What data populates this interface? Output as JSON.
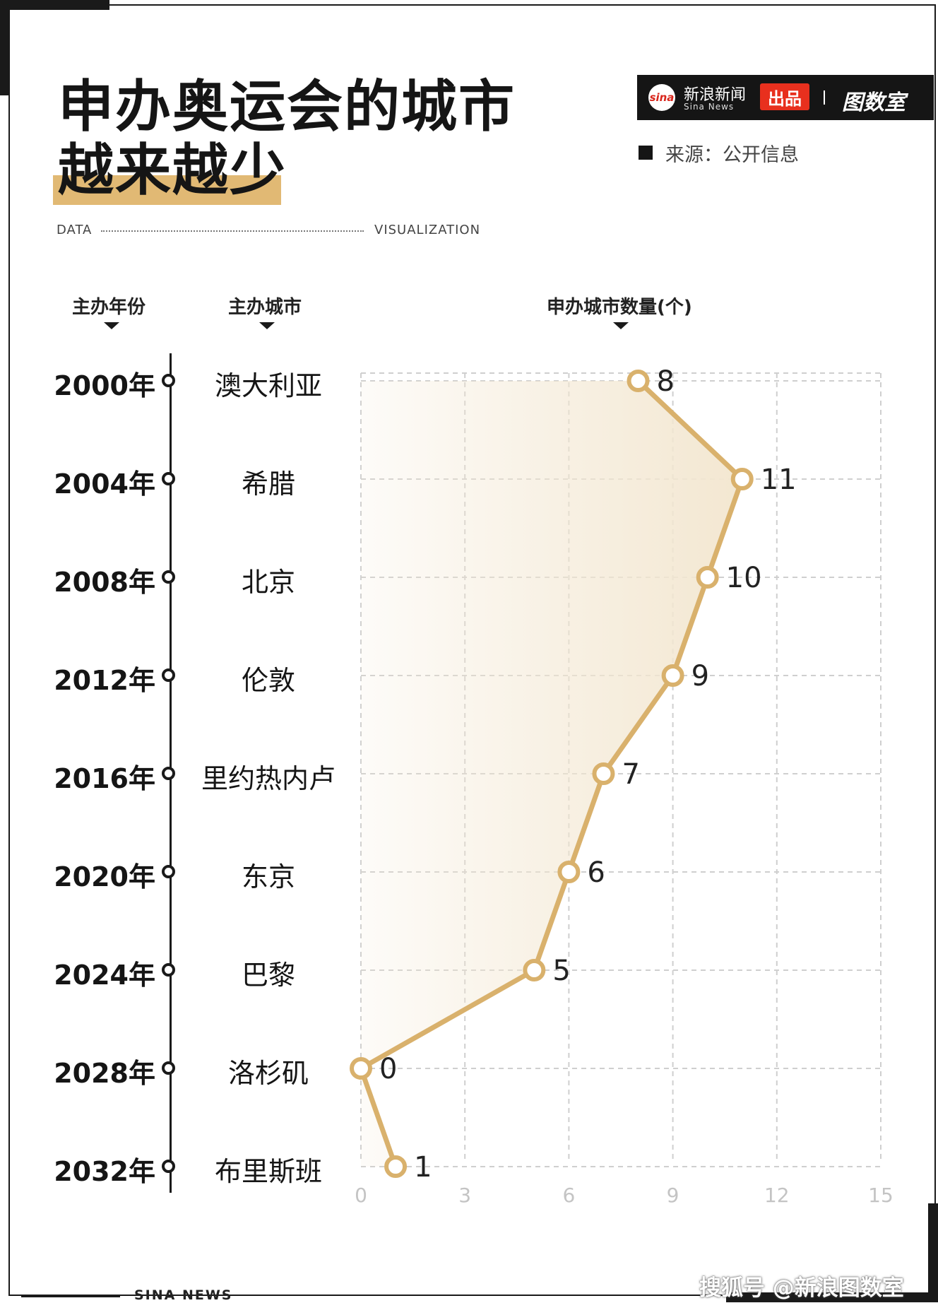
{
  "header": {
    "title_line1": "申办奥运会的城市",
    "title_line2": "越来越少",
    "data_label": "DATA",
    "viz_label": "VISUALIZATION"
  },
  "brand": {
    "logo": "sina",
    "name_cn": "新浪新闻",
    "name_en": "Sina News",
    "tag": "出品",
    "studio": "图数室"
  },
  "source": "来源：公开信息",
  "columns": {
    "year": "主办年份",
    "city": "主办城市",
    "count": "申办城市数量(个)"
  },
  "rows": [
    {
      "year": "2000年",
      "city": "澳大利亚"
    },
    {
      "year": "2004年",
      "city": "希腊"
    },
    {
      "year": "2008年",
      "city": "北京"
    },
    {
      "year": "2012年",
      "city": "伦敦"
    },
    {
      "year": "2016年",
      "city": "里约热内卢"
    },
    {
      "year": "2020年",
      "city": "东京"
    },
    {
      "year": "2024年",
      "city": "巴黎"
    },
    {
      "year": "2028年",
      "city": "洛杉矶"
    },
    {
      "year": "2032年",
      "city": "布里斯班"
    }
  ],
  "chart_data": {
    "type": "line",
    "orientation": "horizontal-values",
    "categories": [
      "2000年",
      "2004年",
      "2008年",
      "2012年",
      "2016年",
      "2020年",
      "2024年",
      "2028年",
      "2032年"
    ],
    "values": [
      8,
      11,
      10,
      9,
      7,
      6,
      5,
      0,
      1
    ],
    "xlabel": "申办城市数量(个)",
    "xlim": [
      0,
      15
    ],
    "xticks": [
      "0",
      "3",
      "6",
      "9",
      "12",
      "15"
    ],
    "grid": true,
    "line_color": "#d9b16c",
    "fill_color": "#f3e7d1"
  },
  "footer": "SINA NEWS",
  "watermark": "搜狐号 @新浪图数室"
}
